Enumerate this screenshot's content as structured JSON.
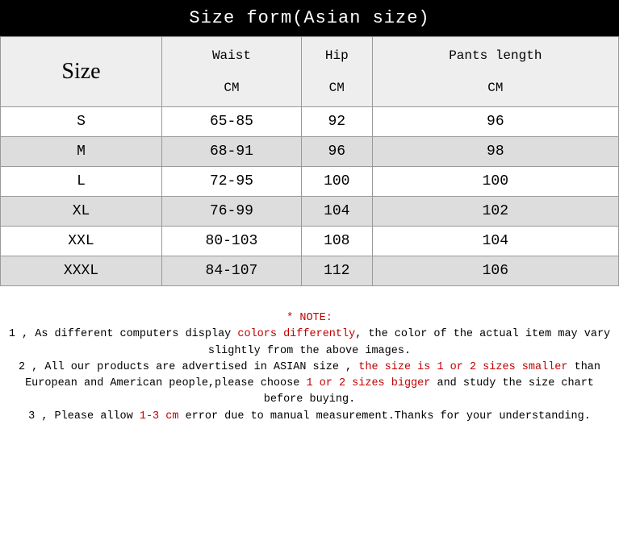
{
  "title": "Size form(Asian size)",
  "table": {
    "size_header": "Size",
    "columns": [
      {
        "label": "Waist",
        "unit": "CM"
      },
      {
        "label": "Hip",
        "unit": "CM"
      },
      {
        "label": "Pants length",
        "unit": "CM"
      }
    ],
    "rows": [
      {
        "size": "S",
        "waist": "65-85",
        "hip": "92",
        "length": "96"
      },
      {
        "size": "M",
        "waist": "68-91",
        "hip": "96",
        "length": "98"
      },
      {
        "size": "L",
        "waist": "72-95",
        "hip": "100",
        "length": "100"
      },
      {
        "size": "XL",
        "waist": "76-99",
        "hip": "104",
        "length": "102"
      },
      {
        "size": "XXL",
        "waist": "80-103",
        "hip": "108",
        "length": "104"
      },
      {
        "size": "XXXL",
        "waist": "84-107",
        "hip": "112",
        "length": "106"
      }
    ],
    "header_bg": "#eeeeee",
    "row_odd_bg": "#ffffff",
    "row_even_bg": "#dddddd",
    "border_color": "#999999"
  },
  "notes": {
    "heading": "* NOTE:",
    "line1a": "1 , As different computers display ",
    "line1b": "colors differently",
    "line1c": ", the color of the actual item may vary slightly from the above images.",
    "line2a": "2 , All our products are advertised in ASIAN size , ",
    "line2b": "the size is 1 or 2 sizes smaller",
    "line2c": " than European and American people,please choose ",
    "line2d": "1 or 2 sizes bigger",
    "line2e": " and study the size chart before buying.",
    "line3a": "3 , Please allow ",
    "line3b": "1-3 cm",
    "line3c": " error due to manual measurement.Thanks for your understanding.",
    "red_color": "#c00000"
  }
}
